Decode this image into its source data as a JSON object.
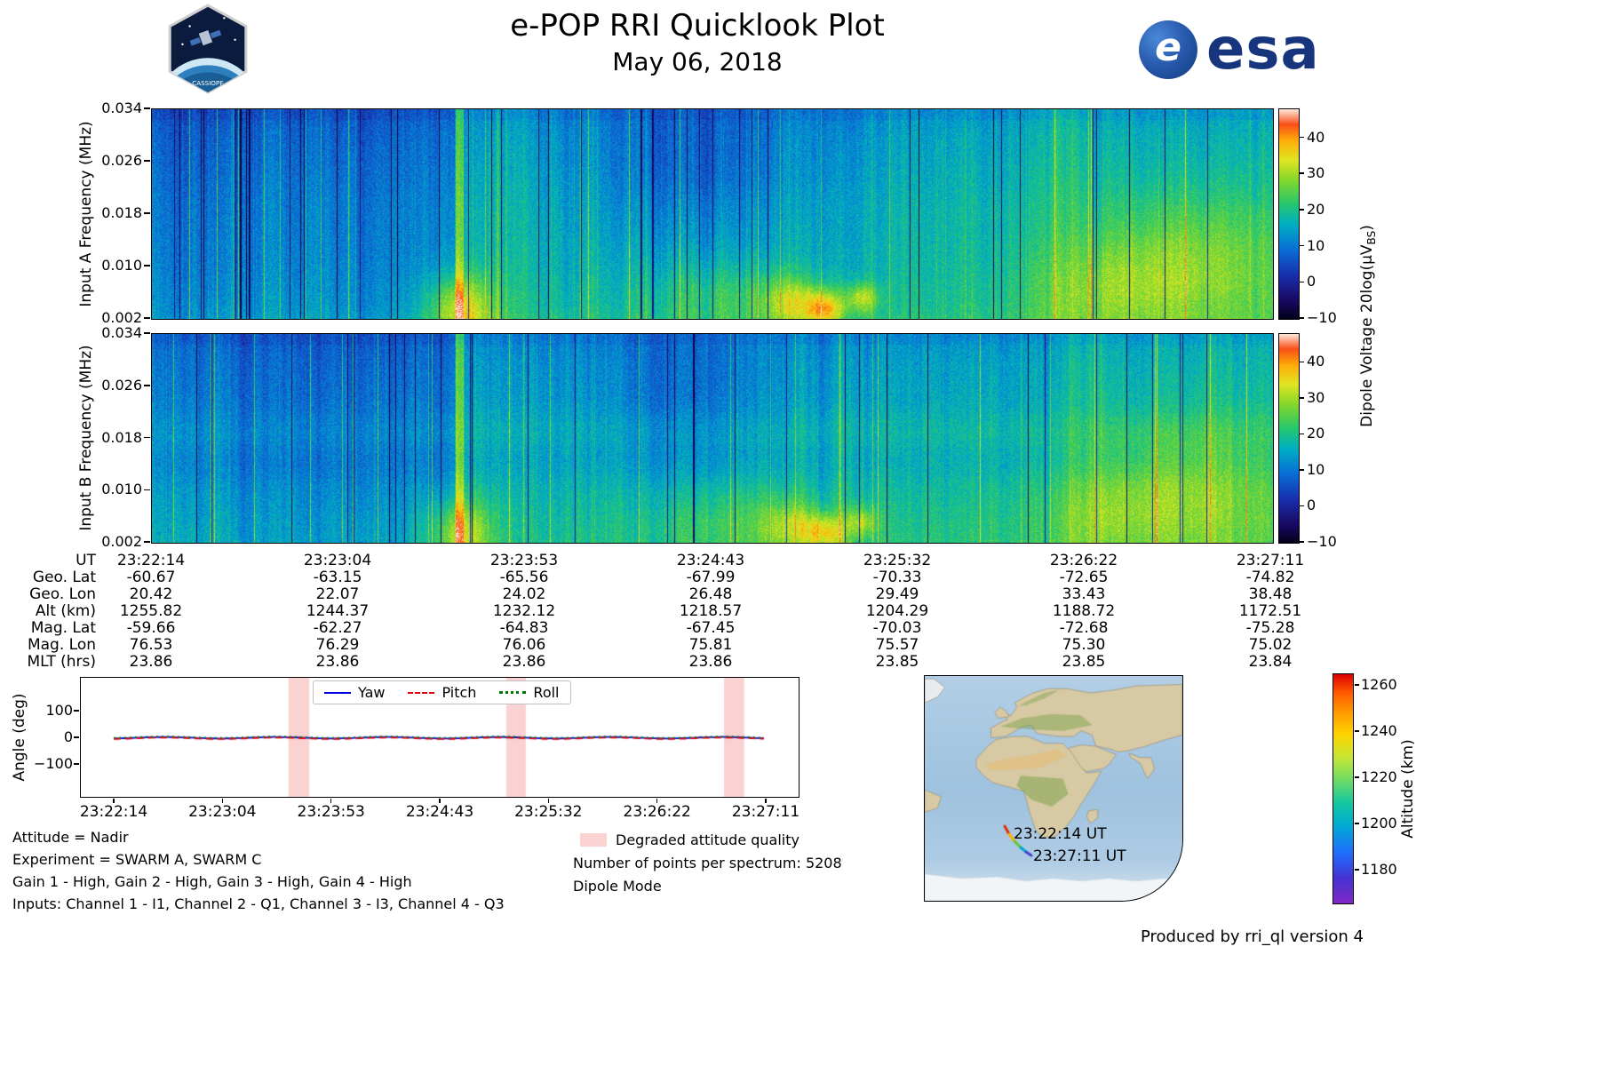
{
  "header": {
    "title": "e-POP RRI Quicklook Plot",
    "date": "May 06, 2018",
    "esa_text": "esa",
    "esa_globe_letter": "e",
    "patch_text": "CASSIOPE"
  },
  "spectrograms": {
    "colorbar_label": {
      "prefix": "Dipole Voltage 20log(μV",
      "sub": "BS",
      "suffix": ")"
    },
    "panels": [
      {
        "ylabel": "Input A Frequency (MHz)",
        "yticks": [
          "0.034",
          "0.026",
          "0.018",
          "0.010",
          "0.002"
        ],
        "colorbar_ticks": [
          "40",
          "30",
          "20",
          "10",
          "0",
          "−10"
        ]
      },
      {
        "ylabel": "Input B Frequency (MHz)",
        "yticks": [
          "0.034",
          "0.026",
          "0.018",
          "0.010",
          "0.002"
        ],
        "colorbar_ticks": [
          "40",
          "30",
          "20",
          "10",
          "0",
          "−10"
        ]
      }
    ]
  },
  "ephemeris": {
    "rows": [
      {
        "label": "UT",
        "values": [
          "23:22:14",
          "23:23:04",
          "23:23:53",
          "23:24:43",
          "23:25:32",
          "23:26:22",
          "23:27:11"
        ]
      },
      {
        "label": "Geo. Lat",
        "values": [
          "-60.67",
          "-63.15",
          "-65.56",
          "-67.99",
          "-70.33",
          "-72.65",
          "-74.82"
        ]
      },
      {
        "label": "Geo. Lon",
        "values": [
          "20.42",
          "22.07",
          "24.02",
          "26.48",
          "29.49",
          "33.43",
          "38.48"
        ]
      },
      {
        "label": "Alt (km)",
        "values": [
          "1255.82",
          "1244.37",
          "1232.12",
          "1218.57",
          "1204.29",
          "1188.72",
          "1172.51"
        ]
      },
      {
        "label": "Mag. Lat",
        "values": [
          "-59.66",
          "-62.27",
          "-64.83",
          "-67.45",
          "-70.03",
          "-72.68",
          "-75.28"
        ]
      },
      {
        "label": "Mag. Lon",
        "values": [
          "76.53",
          "76.29",
          "76.06",
          "75.81",
          "75.57",
          "75.30",
          "75.02"
        ]
      },
      {
        "label": "MLT (hrs)",
        "values": [
          "23.86",
          "23.86",
          "23.86",
          "23.86",
          "23.85",
          "23.85",
          "23.84"
        ]
      }
    ]
  },
  "attitude": {
    "ylabel": "Angle (deg)",
    "yticks": [
      "100",
      "0",
      "−100"
    ],
    "xticks": [
      "23:22:14",
      "23:23:04",
      "23:23:53",
      "23:24:43",
      "23:25:32",
      "23:26:22",
      "23:27:11"
    ],
    "legend": [
      {
        "name": "Yaw",
        "color": "#0000dd",
        "style": "solid"
      },
      {
        "name": "Pitch",
        "color": "#e8000b",
        "style": "dashed"
      },
      {
        "name": "Roll",
        "color": "#007700",
        "style": "dotted"
      }
    ],
    "band_color": "#fad2d2"
  },
  "annotations": {
    "left_lines": [
      "Attitude = Nadir",
      "Experiment = SWARM A, SWARM C",
      "Gain 1 - High, Gain 2 - High, Gain 3 - High, Gain 4 - High",
      "Inputs: Channel 1 - I1, Channel 2 - Q1, Channel 3 - I3, Channel 4 - Q3"
    ],
    "degraded_label": "Degraded attitude quality",
    "points_line": "Number of points per spectrum: 5208",
    "mode_line": "Dipole Mode"
  },
  "map": {
    "start_label": "23:22:14 UT",
    "end_label": "23:27:11 UT",
    "colorbar_label": "Altitude (km)",
    "colorbar_ticks": [
      "1260",
      "1240",
      "1220",
      "1200",
      "1180"
    ]
  },
  "footer": "Produced by rri_ql version 4",
  "chart_data": [
    {
      "type": "heatmap",
      "panel": "A",
      "title": "Input A spectrogram",
      "ylabel": "Input A Frequency (MHz)",
      "ylim": [
        0.002,
        0.034
      ],
      "yticks": [
        0.034,
        0.026,
        0.018,
        0.01,
        0.002
      ],
      "x_range": [
        "23:22:14",
        "23:27:11"
      ],
      "colorbar": {
        "label": "Dipole Voltage 20log(μV_BS)",
        "range": [
          -10,
          48
        ],
        "ticks": [
          40,
          30,
          20,
          10,
          0,
          -10
        ]
      }
    },
    {
      "type": "heatmap",
      "panel": "B",
      "title": "Input B spectrogram",
      "ylabel": "Input B Frequency (MHz)",
      "ylim": [
        0.002,
        0.034
      ],
      "yticks": [
        0.034,
        0.026,
        0.018,
        0.01,
        0.002
      ],
      "x_range": [
        "23:22:14",
        "23:27:11"
      ],
      "colorbar": {
        "label": "Dipole Voltage 20log(μV_BS)",
        "range": [
          -10,
          48
        ],
        "ticks": [
          40,
          30,
          20,
          10,
          0,
          -10
        ]
      }
    },
    {
      "type": "line",
      "title": "Attitude angles",
      "ylabel": "Angle (deg)",
      "ylim": [
        -227,
        227
      ],
      "yticks": [
        100,
        0,
        -100
      ],
      "x": [
        "23:22:14",
        "23:23:04",
        "23:23:53",
        "23:24:43",
        "23:25:32",
        "23:26:22",
        "23:27:11"
      ],
      "series": [
        {
          "name": "Yaw",
          "values": [
            0,
            0,
            0,
            0,
            0,
            0,
            0
          ]
        },
        {
          "name": "Pitch",
          "values": [
            0,
            0,
            0,
            0,
            0,
            0,
            0
          ]
        },
        {
          "name": "Roll",
          "values": [
            0,
            0,
            0,
            0,
            0,
            0,
            0
          ]
        }
      ],
      "legend_position": "top-center",
      "degraded_intervals_frac": [
        [
          0.268,
          0.3
        ],
        [
          0.602,
          0.632
        ],
        [
          0.936,
          0.967
        ]
      ]
    },
    {
      "type": "map",
      "title": "Ground track",
      "track": {
        "start": {
          "ut": "23:22:14",
          "geo_lat": -60.67,
          "geo_lon": 20.42,
          "alt_km": 1255.82
        },
        "end": {
          "ut": "23:27:11",
          "geo_lat": -74.82,
          "geo_lon": 38.48,
          "alt_km": 1172.51
        }
      },
      "colorbar": {
        "label": "Altitude (km)",
        "range": [
          1165,
          1265
        ],
        "ticks": [
          1260,
          1240,
          1220,
          1200,
          1180
        ]
      }
    }
  ]
}
